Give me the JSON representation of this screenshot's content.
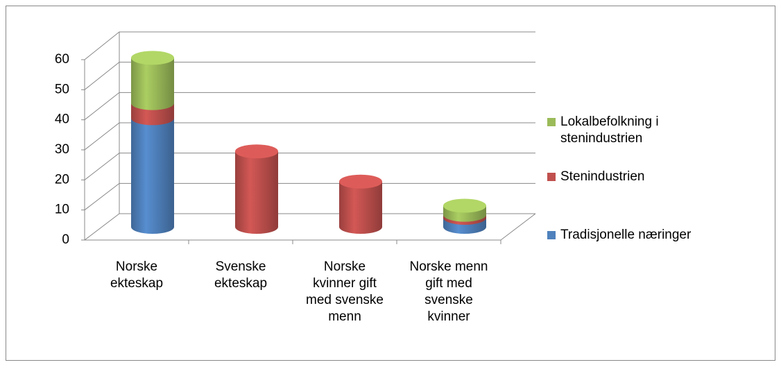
{
  "chart_data": {
    "type": "bar3d_stacked_cylinder",
    "categories": [
      "Norske ekteskap",
      "Svenske ekteskap",
      "Norske kvinner gift med svenske menn",
      "Norske menn gift med svenske kvinner"
    ],
    "series": [
      {
        "name": "Tradisjonelle næringer",
        "color": "#4f81bd",
        "values": [
          36,
          0,
          0,
          3
        ]
      },
      {
        "name": "Stenindustrien",
        "color": "#c0504d",
        "values": [
          5,
          25,
          15,
          1
        ]
      },
      {
        "name": "Lokalbefolkning i stenindustrien",
        "color": "#9bbb59",
        "values": [
          15,
          0,
          0,
          3
        ]
      }
    ],
    "ylim": [
      0,
      60
    ],
    "yticks": [
      0,
      10,
      20,
      30,
      40,
      50,
      60
    ],
    "grid": true,
    "legend": "right"
  }
}
